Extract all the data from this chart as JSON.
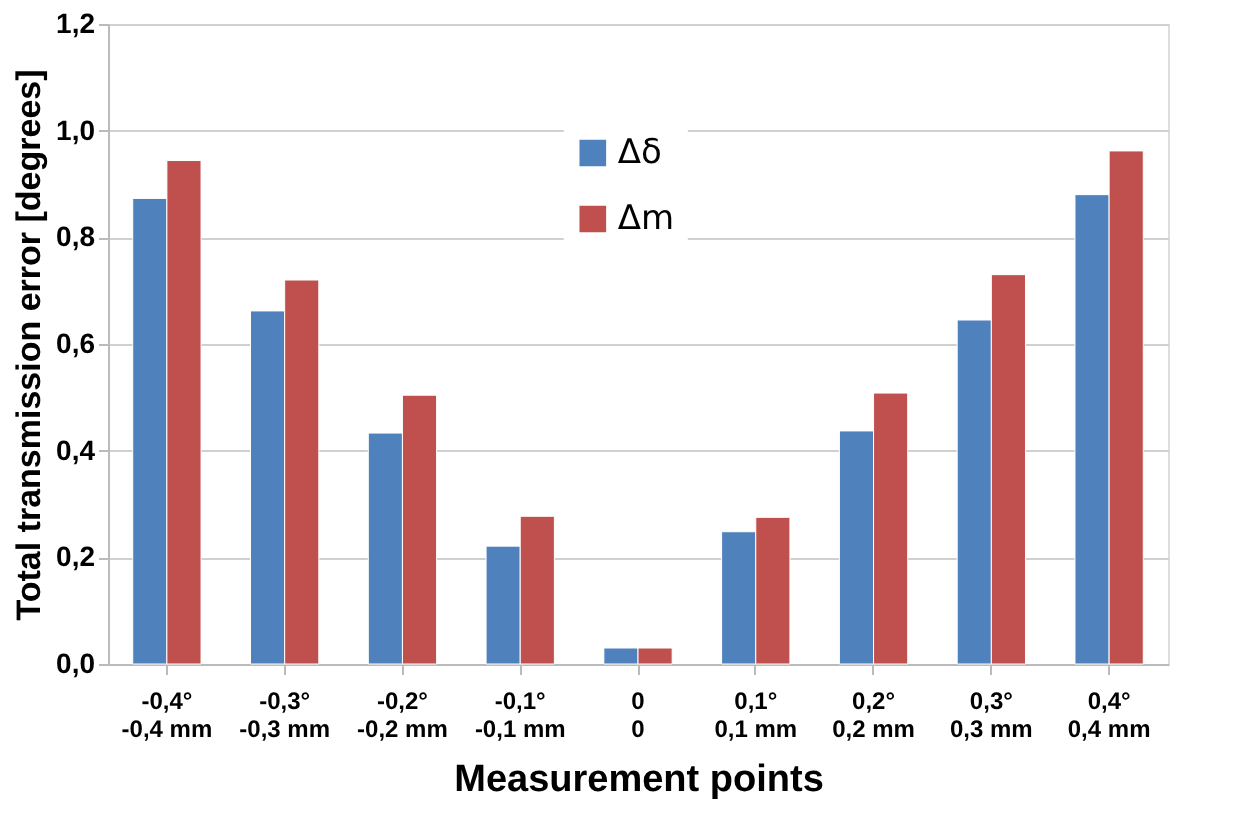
{
  "chart_data": {
    "type": "bar",
    "xlabel": "Measurement points",
    "ylabel": "Total transmission error [degrees]",
    "categories": [
      "-0,4°\n-0,4 mm",
      "-0,3°\n-0,3 mm",
      "-0,2°\n-0,2 mm",
      "-0,1°\n-0,1 mm",
      "0\n0",
      "0,1°\n0,1 mm",
      "0,2°\n0,2 mm",
      "0,3°\n0,3 mm",
      "0,4°\n0,4 mm"
    ],
    "series": [
      {
        "name": "Δδ",
        "color": "#4f81bd",
        "values": [
          0.873,
          0.662,
          0.433,
          0.221,
          0.03,
          0.248,
          0.437,
          0.645,
          0.88
        ]
      },
      {
        "name": "Δm",
        "color": "#c0504d",
        "values": [
          0.944,
          0.72,
          0.504,
          0.277,
          0.03,
          0.275,
          0.508,
          0.73,
          0.962
        ]
      }
    ],
    "ylim": [
      0,
      1.2
    ],
    "yticks": [
      {
        "value": 0,
        "label": "0,0"
      },
      {
        "value": 0.2,
        "label": "0,2"
      },
      {
        "value": 0.4,
        "label": "0,4"
      },
      {
        "value": 0.6,
        "label": "0,6"
      },
      {
        "value": 0.8,
        "label": "0,8"
      },
      {
        "value": 1.0,
        "label": "1,0"
      },
      {
        "value": 1.2,
        "label": "1,2"
      }
    ],
    "grid": "y",
    "legend": "top"
  }
}
